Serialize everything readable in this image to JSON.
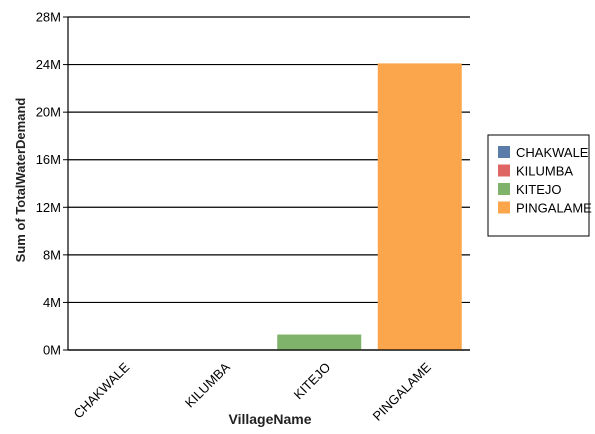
{
  "chart_data": {
    "type": "bar",
    "title": "",
    "xlabel": "VillageName",
    "ylabel": "Sum of TotalWaterDemand",
    "categories": [
      "CHAKWALE",
      "KILUMBA",
      "KITEJO",
      "PINGALAME"
    ],
    "values": [
      0,
      0,
      1300000,
      24100000
    ],
    "colors": [
      "#5b7ba8",
      "#e06666",
      "#7fb26b",
      "#fba64c"
    ],
    "ylim": [
      0,
      28000000
    ],
    "yticks": [
      {
        "value": 0,
        "label": "0M"
      },
      {
        "value": 4000000,
        "label": "4M"
      },
      {
        "value": 8000000,
        "label": "8M"
      },
      {
        "value": 12000000,
        "label": "12M"
      },
      {
        "value": 16000000,
        "label": "16M"
      },
      {
        "value": 20000000,
        "label": "20M"
      },
      {
        "value": 24000000,
        "label": "24M"
      },
      {
        "value": 28000000,
        "label": "28M"
      }
    ],
    "grid": true,
    "legend_position": "right"
  }
}
